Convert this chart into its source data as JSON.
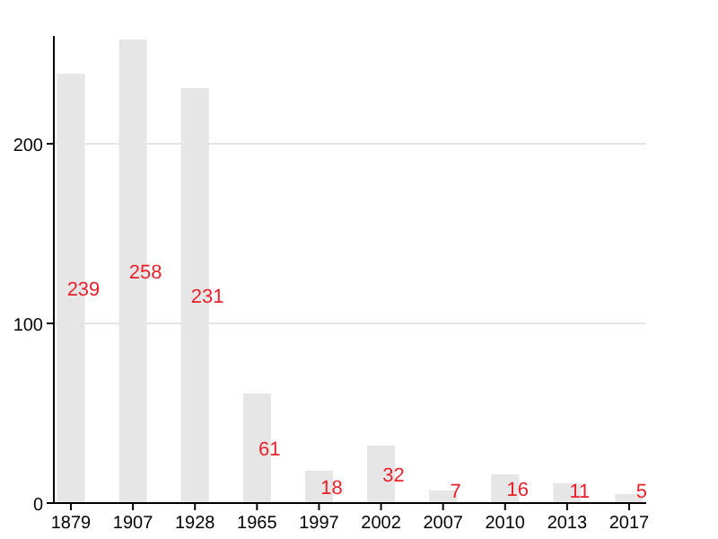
{
  "chart_data": {
    "type": "bar",
    "categories": [
      "1879",
      "1907",
      "1928",
      "1965",
      "1997",
      "2002",
      "2007",
      "2010",
      "2013",
      "2017"
    ],
    "values": [
      239,
      258,
      231,
      61,
      18,
      32,
      7,
      16,
      11,
      5
    ],
    "color": "#e6e6e6",
    "ylim": [
      0,
      260
    ],
    "yticks": [
      0,
      100,
      200
    ],
    "grid": "y",
    "data_labels": true
  }
}
